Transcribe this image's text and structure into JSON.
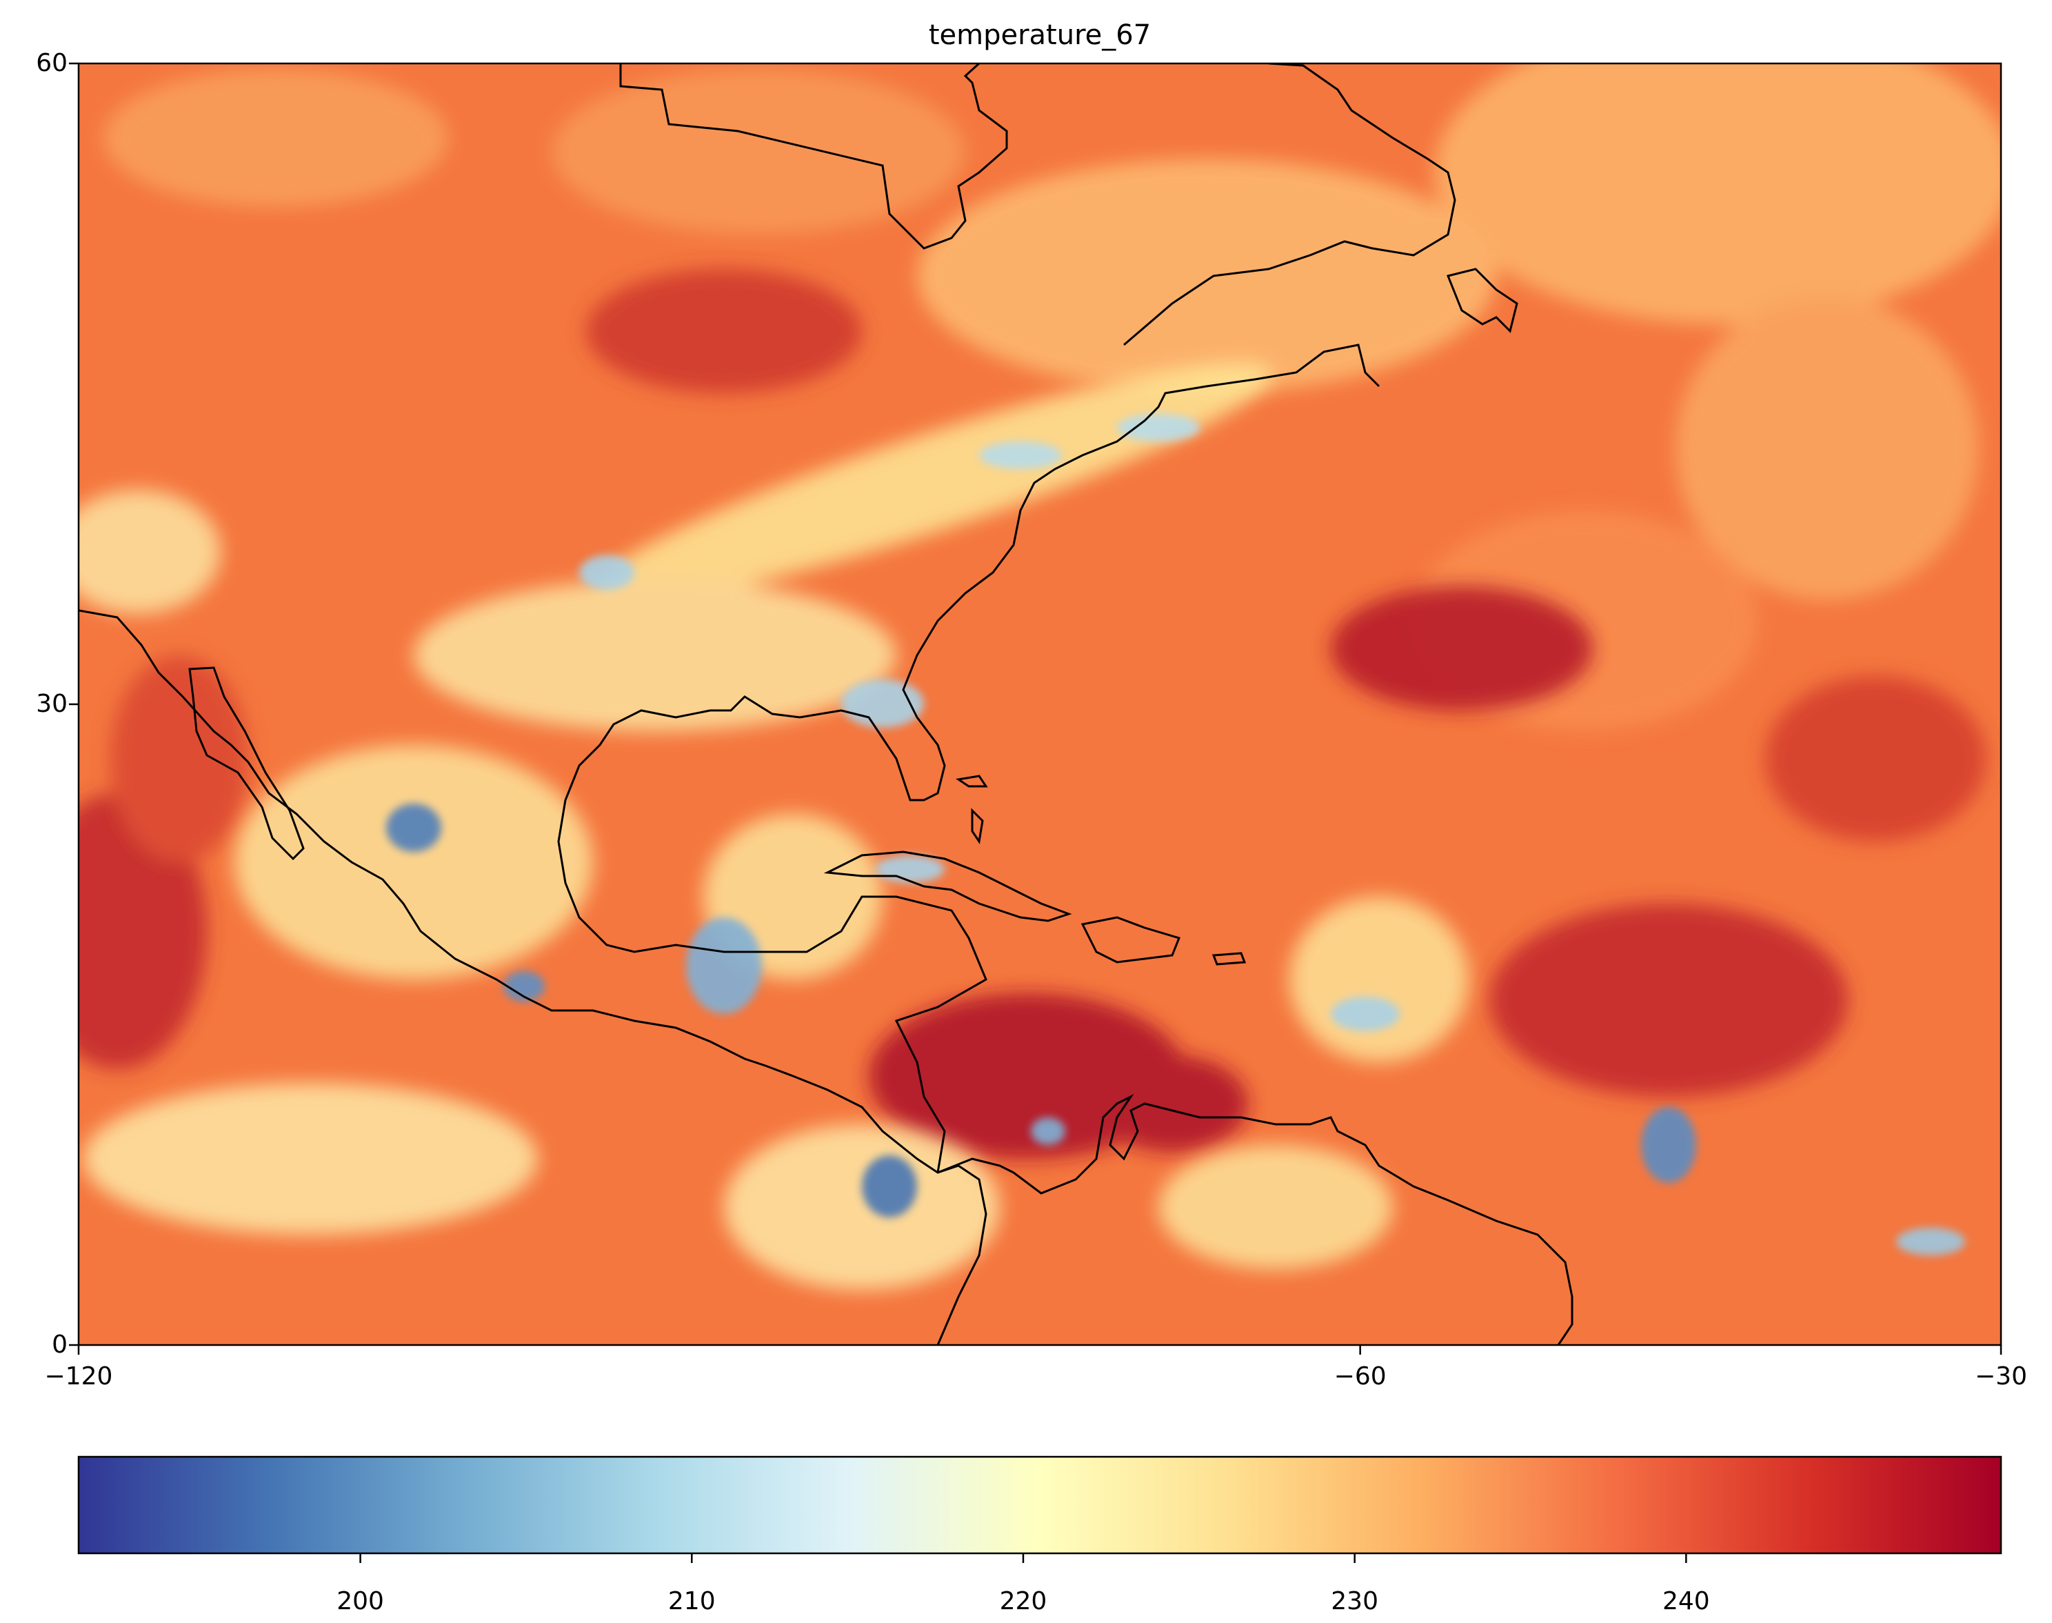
{
  "title": "temperature_67",
  "map": {
    "projection": "lon/lat",
    "lon_range": [
      -120,
      -30
    ],
    "lat_range": [
      0,
      60
    ],
    "x_ticks": [
      {
        "value": -120,
        "label": "−120"
      },
      {
        "value": -60,
        "label": "−60"
      },
      {
        "value": -30,
        "label": "−30"
      }
    ],
    "y_ticks": [
      {
        "value": 0,
        "label": "0"
      },
      {
        "value": 30,
        "label": "30"
      },
      {
        "value": 60,
        "label": "60"
      }
    ],
    "coastline_color": "#000000"
  },
  "colorbar": {
    "colormap": "RdYlBu_r",
    "range": [
      191.5,
      249.5
    ],
    "ticks": [
      {
        "value": 200,
        "label": "200"
      },
      {
        "value": 210,
        "label": "210"
      },
      {
        "value": 220,
        "label": "220"
      },
      {
        "value": 230,
        "label": "230"
      },
      {
        "value": 240,
        "label": "240"
      }
    ],
    "colors": [
      "#313695",
      "#4575b4",
      "#74add1",
      "#abd9e9",
      "#e0f3f8",
      "#ffffbf",
      "#fee090",
      "#fdae61",
      "#f46d43",
      "#d73027",
      "#a50026"
    ]
  }
}
